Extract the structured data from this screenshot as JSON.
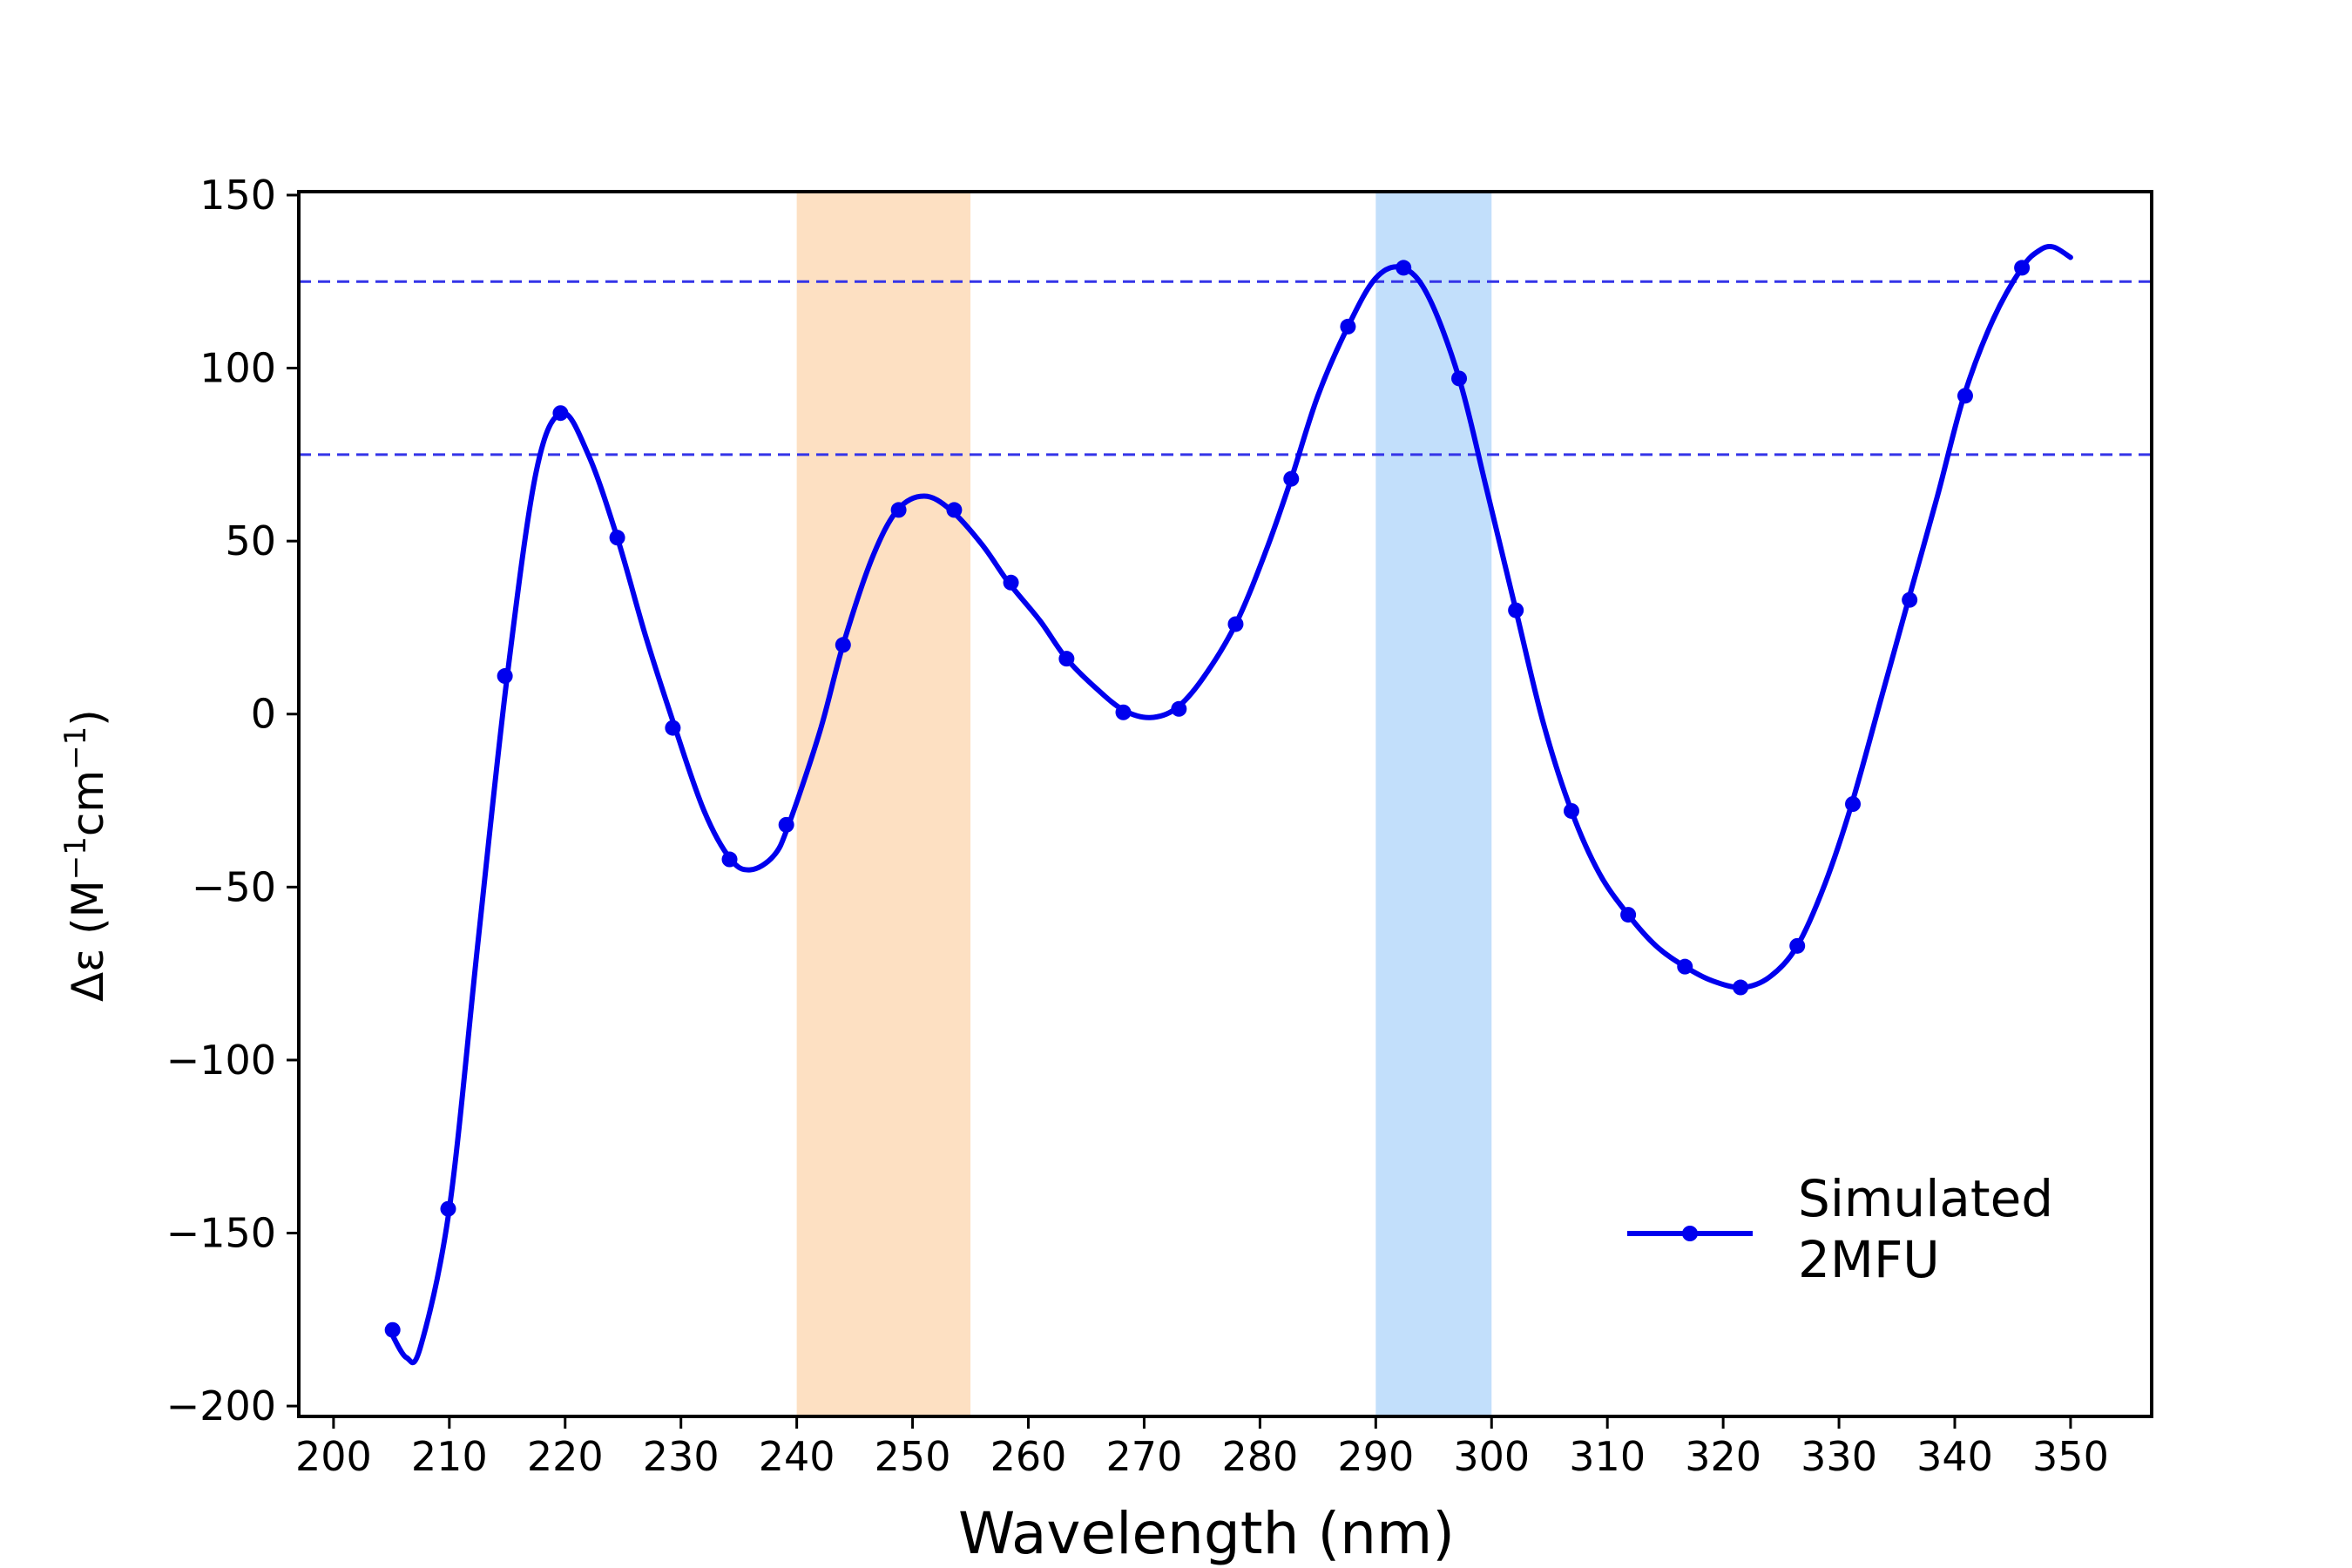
{
  "chart_data": {
    "type": "line",
    "title": "",
    "xlabel": "Wavelength (nm)",
    "ylabel": {
      "delta": "Δε (M",
      "sup1": "−1",
      "mid": "cm",
      "sup2": "−1",
      "end": ")"
    },
    "xlim": [
      197,
      357
    ],
    "ylim": [
      -203,
      151
    ],
    "xticks": [
      200,
      210,
      220,
      230,
      240,
      250,
      260,
      270,
      280,
      290,
      300,
      310,
      320,
      330,
      340,
      350
    ],
    "yticks": [
      -200,
      -150,
      -100,
      -50,
      0,
      50,
      100,
      150
    ],
    "xtick_labels": [
      "200",
      "210",
      "220",
      "230",
      "240",
      "250",
      "260",
      "270",
      "280",
      "290",
      "300",
      "310",
      "320",
      "330",
      "340",
      "350"
    ],
    "ytick_labels": [
      "−200",
      "−150",
      "−100",
      "−50",
      "0",
      "50",
      "100",
      "150"
    ],
    "shaded_regions": [
      {
        "x": [
          240,
          255
        ],
        "color": "#fde0c2"
      },
      {
        "x": [
          290,
          300
        ],
        "color": "#c2dffb"
      }
    ],
    "hlines": [
      {
        "y": 125,
        "style": "dashed",
        "color": "#3434e8"
      },
      {
        "y": 75,
        "style": "dashed",
        "color": "#3434e8"
      }
    ],
    "series": [
      {
        "name": "Simulated\n2MFU",
        "legend_lines": [
          "Simulated",
          "2MFU"
        ],
        "color": "#0000ee",
        "curve": [
          [
            205,
            -179
          ],
          [
            206.3,
            -186
          ],
          [
            207.5,
            -183
          ],
          [
            210,
            -143
          ],
          [
            212.5,
            -65
          ],
          [
            215,
            11
          ],
          [
            217.5,
            70
          ],
          [
            219.7,
            87
          ],
          [
            222,
            75
          ],
          [
            224.5,
            51
          ],
          [
            227,
            22
          ],
          [
            229.5,
            -4
          ],
          [
            232,
            -28
          ],
          [
            234.3,
            -42
          ],
          [
            236,
            -45
          ],
          [
            238,
            -41
          ],
          [
            239.3,
            -32
          ],
          [
            242,
            -5
          ],
          [
            244,
            20
          ],
          [
            246.5,
            45
          ],
          [
            248.7,
            59
          ],
          [
            251,
            63
          ],
          [
            253.3,
            59
          ],
          [
            256,
            49
          ],
          [
            258.3,
            38
          ],
          [
            261,
            27
          ],
          [
            263.3,
            16
          ],
          [
            266,
            7
          ],
          [
            268.3,
            1
          ],
          [
            270.5,
            -1
          ],
          [
            272.7,
            1.5
          ],
          [
            275,
            10
          ],
          [
            277.9,
            26
          ],
          [
            280.5,
            47
          ],
          [
            282.7,
            68
          ],
          [
            285,
            92
          ],
          [
            287.6,
            112
          ],
          [
            290,
            126
          ],
          [
            292.3,
            129
          ],
          [
            294.5,
            121
          ],
          [
            297.2,
            97
          ],
          [
            299.5,
            66
          ],
          [
            302.1,
            30
          ],
          [
            304.5,
            -3
          ],
          [
            306.9,
            -28
          ],
          [
            309.3,
            -46
          ],
          [
            311.8,
            -58
          ],
          [
            314.2,
            -67
          ],
          [
            316.7,
            -73
          ],
          [
            319,
            -77
          ],
          [
            321.6,
            -79
          ],
          [
            324,
            -76
          ],
          [
            326.4,
            -67
          ],
          [
            328.8,
            -49
          ],
          [
            331.1,
            -26
          ],
          [
            333.6,
            4
          ],
          [
            336,
            33
          ],
          [
            338.5,
            63
          ],
          [
            340.8,
            92
          ],
          [
            343.3,
            114
          ],
          [
            345.8,
            129
          ],
          [
            347.3,
            134
          ],
          [
            348.5,
            135
          ],
          [
            350,
            132
          ]
        ],
        "markers": [
          [
            205.1,
            -178
          ],
          [
            209.9,
            -143
          ],
          [
            214.8,
            11
          ],
          [
            219.6,
            87
          ],
          [
            224.5,
            51
          ],
          [
            229.3,
            -4
          ],
          [
            234.2,
            -42
          ],
          [
            239.1,
            -32
          ],
          [
            244,
            20
          ],
          [
            248.8,
            59
          ],
          [
            253.6,
            59
          ],
          [
            258.5,
            38
          ],
          [
            263.3,
            16
          ],
          [
            268.2,
            0.5
          ],
          [
            273,
            1.5
          ],
          [
            277.9,
            26
          ],
          [
            282.7,
            68
          ],
          [
            287.6,
            112
          ],
          [
            292.4,
            129
          ],
          [
            297.2,
            97
          ],
          [
            302.1,
            30
          ],
          [
            306.9,
            -28
          ],
          [
            311.8,
            -58
          ],
          [
            316.7,
            -73
          ],
          [
            321.5,
            -79
          ],
          [
            326.4,
            -67
          ],
          [
            331.2,
            -26
          ],
          [
            336.1,
            33
          ],
          [
            340.9,
            92
          ],
          [
            345.8,
            129
          ]
        ]
      }
    ],
    "legend_position": "lower-right",
    "grid": false
  }
}
